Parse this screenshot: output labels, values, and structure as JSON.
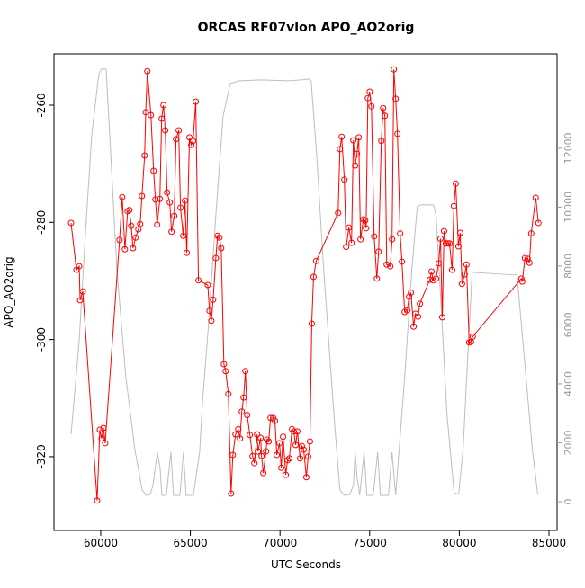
{
  "chart_data": {
    "type": "line",
    "title": "ORCAS RF07vlon APO_AO2orig",
    "x_label": "UTC Seconds",
    "y_label": "APO_AO2orig",
    "xlim": [
      57392,
      85451
    ],
    "xticks": [
      60000,
      65000,
      70000,
      75000,
      80000,
      85000
    ],
    "ylim": [
      -332.6,
      -251.25
    ],
    "yticks": [
      -320,
      -300,
      -280,
      -260
    ],
    "y2lim": [
      -977,
      15200
    ],
    "y2ticks": [
      0,
      2000,
      4000,
      6000,
      8000,
      10000,
      12000
    ],
    "series": [
      {
        "color": "#ff0000",
        "markers": true,
        "x": [
          58345,
          58646,
          58800,
          58850,
          59000,
          59800,
          59950,
          60050,
          60150,
          60250,
          61050,
          61200,
          61350,
          61500,
          61600,
          61700,
          61800,
          61950,
          62100,
          62200,
          62300,
          62450,
          62510,
          62600,
          62800,
          62950,
          63050,
          63150,
          63300,
          63400,
          63500,
          63600,
          63700,
          63850,
          63950,
          64100,
          64200,
          64350,
          64450,
          64600,
          64700,
          64800,
          64950,
          65050,
          65150,
          65300,
          65450,
          65970,
          66070,
          66170,
          66270,
          66420,
          66520,
          66620,
          66720,
          66870,
          66970,
          67120,
          67270,
          67370,
          67520,
          67670,
          67770,
          67870,
          67970,
          68070,
          68170,
          68320,
          68470,
          68570,
          68720,
          68770,
          68920,
          68970,
          69070,
          69220,
          69270,
          69370,
          69470,
          69620,
          69720,
          69820,
          69970,
          70070,
          70170,
          70320,
          70420,
          70520,
          70670,
          70770,
          70870,
          70970,
          71120,
          71220,
          71320,
          71470,
          71570,
          71670,
          71770,
          71870,
          72020,
          73240,
          73340,
          73440,
          73590,
          73690,
          73840,
          73990,
          74090,
          74190,
          74290,
          74390,
          74490,
          74650,
          74750,
          74800,
          74900,
          75000,
          75100,
          75250,
          75400,
          75500,
          75650,
          75750,
          75850,
          75950,
          76150,
          76250,
          76350,
          76450,
          76550,
          76700,
          76800,
          76950,
          77100,
          77200,
          77300,
          77450,
          77550,
          77700,
          77800,
          78350,
          78450,
          78550,
          78700,
          78850,
          78950,
          79050,
          79150,
          79250,
          79350,
          79450,
          79600,
          79700,
          79800,
          79950,
          80050,
          80150,
          80300,
          80400,
          80550,
          80650,
          80750,
          83460,
          83510,
          83660,
          83810,
          83910,
          84010,
          84260,
          84410
        ],
        "values": [
          -280.1,
          -288.1,
          -287.5,
          -293.3,
          -291.8,
          -327.5,
          -315.4,
          -316.9,
          -315.1,
          -317.7,
          -283.0,
          -275.7,
          -284.6,
          -278.1,
          -277.9,
          -280.6,
          -284.4,
          -282.6,
          -281.2,
          -280.3,
          -275.5,
          -268.6,
          -261.2,
          -254.2,
          -261.7,
          -271.2,
          -276.1,
          -280.4,
          -276.0,
          -262.3,
          -260.0,
          -264.3,
          -274.9,
          -276.6,
          -281.6,
          -278.9,
          -265.8,
          -264.3,
          -277.5,
          -282.3,
          -276.3,
          -285.2,
          -265.5,
          -266.8,
          -266.1,
          -259.4,
          -289.9,
          -290.7,
          -295.1,
          -296.8,
          -293.2,
          -286.1,
          -282.3,
          -282.6,
          -284.4,
          -304.2,
          -305.4,
          -309.3,
          -326.3,
          -319.7,
          -316.2,
          -315.3,
          -316.9,
          -312.3,
          -309.9,
          -305.4,
          -312.9,
          -316.3,
          -319.9,
          -321.1,
          -316.2,
          -319.1,
          -316.8,
          -319.9,
          -322.8,
          -319.1,
          -317.1,
          -317.4,
          -313.4,
          -313.4,
          -313.9,
          -319.7,
          -317.7,
          -321.9,
          -316.6,
          -323.1,
          -320.6,
          -320.3,
          -315.3,
          -315.7,
          -318.0,
          -315.7,
          -320.3,
          -318.2,
          -318.8,
          -323.5,
          -320.0,
          -317.4,
          -297.3,
          -289.3,
          -286.6,
          -278.4,
          -267.5,
          -265.4,
          -272.7,
          -284.2,
          -280.9,
          -283.5,
          -266.0,
          -270.3,
          -268.3,
          -265.5,
          -282.9,
          -279.5,
          -279.7,
          -281.0,
          -258.8,
          -257.7,
          -260.2,
          -282.4,
          -289.6,
          -285.0,
          -266.1,
          -260.5,
          -261.8,
          -287.2,
          -287.5,
          -282.9,
          -253.9,
          -258.9,
          -264.9,
          -281.9,
          -286.7,
          -295.3,
          -295.0,
          -292.7,
          -292.0,
          -297.8,
          -295.6,
          -296.1,
          -293.9,
          -289.8,
          -288.4,
          -289.9,
          -289.6,
          -287.0,
          -282.8,
          -296.2,
          -281.5,
          -283.6,
          -283.6,
          -283.6,
          -288.1,
          -277.2,
          -273.4,
          -284.1,
          -281.8,
          -290.5,
          -288.9,
          -287.2,
          -300.5,
          -300.4,
          -299.5,
          -289.6,
          -290.1,
          -286.1,
          -286.2,
          -286.9,
          -281.9,
          -275.8,
          -280.1
        ]
      },
      {
        "color": "#bebebe",
        "axis": "y2",
        "markers": false,
        "x": [
          58345,
          58796,
          59147,
          59498,
          59900,
          60050,
          60301,
          60501,
          60903,
          61404,
          61906,
          62307,
          62557,
          62758,
          62909,
          63159,
          63310,
          63410,
          63661,
          63912,
          64062,
          64413,
          64614,
          64764,
          65165,
          65516,
          65667,
          66018,
          66419,
          66820,
          67221,
          67723,
          68927,
          70431,
          71183,
          71584,
          71735,
          72036,
          72437,
          73039,
          73340,
          73590,
          73891,
          74092,
          74192,
          74293,
          74443,
          74694,
          74844,
          75195,
          75446,
          75596,
          76047,
          76248,
          76449,
          76951,
          77352,
          77653,
          77853,
          78555,
          78706,
          78957,
          79308,
          79709,
          79960,
          80211,
          80462,
          80713,
          83220,
          83722,
          84073,
          84374
        ],
        "values": [
          2290,
          5434,
          9098,
          12456,
          14532,
          14685,
          14685,
          12456,
          7877,
          4213,
          1771,
          397,
          214,
          244,
          550,
          1679,
          1160,
          214,
          214,
          1679,
          214,
          214,
          1679,
          214,
          214,
          1679,
          3297,
          6045,
          9709,
          13067,
          14196,
          14288,
          14318,
          14288,
          14318,
          14349,
          14288,
          11846,
          7877,
          2687,
          397,
          214,
          244,
          550,
          1679,
          855,
          214,
          1679,
          214,
          214,
          1679,
          214,
          214,
          1679,
          214,
          4213,
          7877,
          10014,
          10075,
          10075,
          9709,
          6961,
          2992,
          305,
          244,
          1771,
          4824,
          7785,
          7694,
          4213,
          1771,
          244
        ]
      }
    ]
  }
}
